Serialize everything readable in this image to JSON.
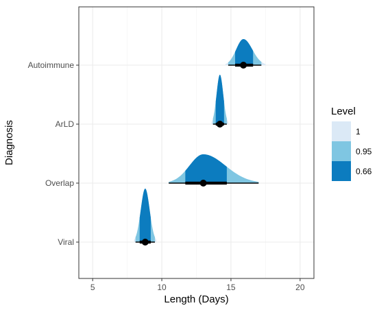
{
  "chart_data": {
    "type": "halfeye",
    "xlabel": "Length (Days)",
    "ylabel": "Diagnosis",
    "xlim": [
      4,
      21
    ],
    "xticks": [
      5,
      10,
      15,
      20
    ],
    "categories": [
      "Autoimmune",
      "ArLD",
      "Overlap",
      "Viral"
    ],
    "grid": true,
    "legend": {
      "title": "Level",
      "placement": "right",
      "entries": [
        {
          "label": "1",
          "color": "#dbe9f6"
        },
        {
          "label": "0.95",
          "color": "#7fc6e2"
        },
        {
          "label": "0.66",
          "color": "#0c7cbf"
        }
      ]
    },
    "series": [
      {
        "category": "Autoimmune",
        "median": 15.9,
        "interval_66": [
          15.3,
          16.6
        ],
        "interval_95": [
          14.8,
          17.2
        ],
        "range": [
          14.6,
          17.5
        ]
      },
      {
        "category": "ArLD",
        "median": 14.2,
        "interval_66": [
          13.9,
          14.5
        ],
        "interval_95": [
          13.7,
          14.7
        ],
        "range": [
          13.6,
          14.8
        ]
      },
      {
        "category": "Overlap",
        "median": 13.0,
        "interval_66": [
          11.7,
          14.7
        ],
        "interval_95": [
          10.5,
          17.0
        ],
        "range": [
          10.5,
          17.0
        ]
      },
      {
        "category": "Viral",
        "median": 8.8,
        "interval_66": [
          8.4,
          9.2
        ],
        "interval_95": [
          8.1,
          9.5
        ],
        "range": [
          8.0,
          9.6
        ]
      }
    ]
  }
}
